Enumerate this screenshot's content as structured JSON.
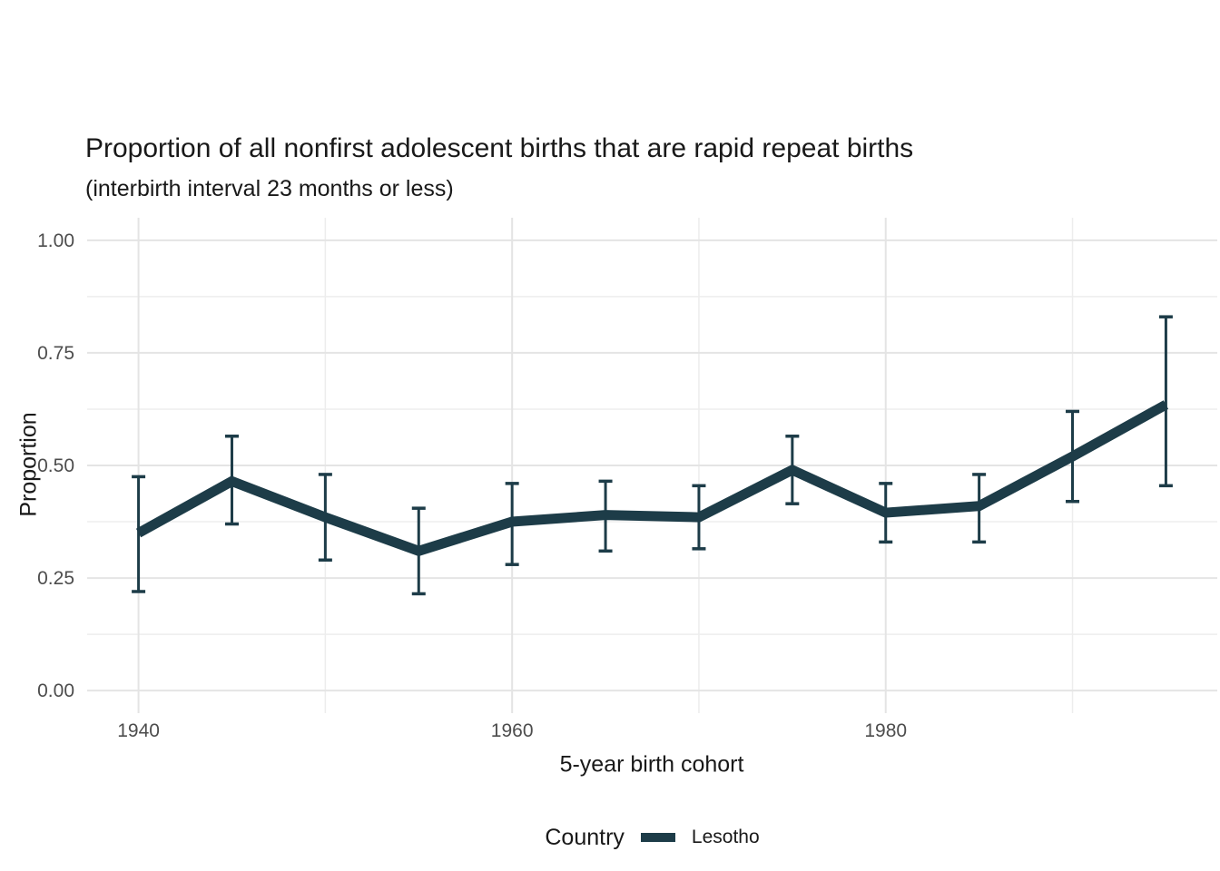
{
  "title": "Proportion of all nonfirst adolescent births that are rapid repeat births",
  "subtitle": "(interbirth interval 23 months or less)",
  "legend": {
    "title": "Country",
    "items": [
      {
        "label": "Lesotho",
        "color": "#1d3c48"
      }
    ]
  },
  "colors": {
    "series": "#1d3c48",
    "grid_major": "#e4e4e4",
    "grid_minor": "#ededed",
    "tick_label": "#4d4d4d",
    "text": "#191919",
    "background": "#ffffff"
  },
  "chart_data": {
    "type": "line",
    "title": "Proportion of all nonfirst adolescent births that are rapid repeat births",
    "subtitle": "(interbirth interval 23 months or less)",
    "xlabel": "5-year birth cohort",
    "ylabel": "Proportion",
    "x": [
      1940,
      1945,
      1950,
      1955,
      1960,
      1965,
      1970,
      1975,
      1980,
      1985,
      1990,
      1995
    ],
    "series": [
      {
        "name": "Lesotho",
        "color": "#1d3c48",
        "values": [
          0.35,
          0.465,
          0.385,
          0.31,
          0.375,
          0.39,
          0.385,
          0.49,
          0.395,
          0.41,
          0.52,
          0.635
        ],
        "ci_low": [
          0.22,
          0.37,
          0.29,
          0.215,
          0.28,
          0.31,
          0.315,
          0.415,
          0.33,
          0.33,
          0.42,
          0.455
        ],
        "ci_high": [
          0.475,
          0.565,
          0.48,
          0.405,
          0.46,
          0.465,
          0.455,
          0.565,
          0.46,
          0.48,
          0.62,
          0.83
        ]
      }
    ],
    "error_bars": true,
    "xlim": [
      1937.25,
      1997.75
    ],
    "ylim": [
      -0.05,
      1.05
    ],
    "x_major_ticks": [
      1940,
      1960,
      1980
    ],
    "x_tick_labels": [
      "1940",
      "1960",
      "1980"
    ],
    "x_minor_gridlines": [
      1950,
      1970,
      1990
    ],
    "y_major_ticks": [
      0.0,
      0.25,
      0.5,
      0.75,
      1.0
    ],
    "y_tick_labels": [
      "0.00",
      "0.25",
      "0.50",
      "0.75",
      "1.00"
    ],
    "y_minor_gridlines": [
      0.125,
      0.375,
      0.625,
      0.875
    ],
    "grid": true,
    "legend_position": "bottom"
  }
}
